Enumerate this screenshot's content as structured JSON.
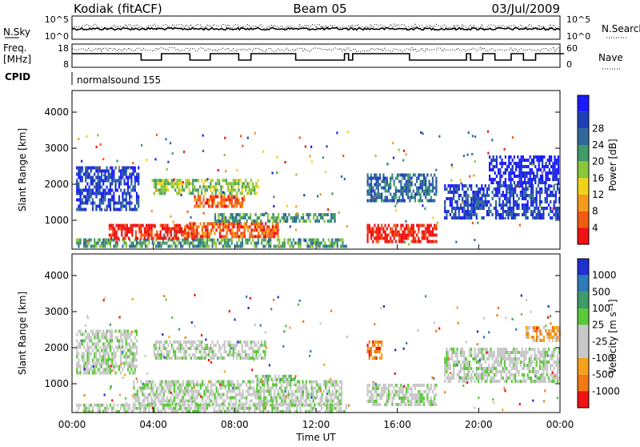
{
  "header": {
    "radar": "Kodiak (fitACF)",
    "beam": "Beam 05",
    "date": "03/Jul/2009"
  },
  "top_panels": {
    "noise": {
      "left_label": "N.Sky",
      "right_label": "N.Search",
      "left_ticks": [
        "10^5",
        "10^0"
      ],
      "right_ticks": [
        "10^5",
        "10^0"
      ]
    },
    "freq": {
      "left_label_1": "Freq.",
      "left_label_2": "[MHz]",
      "right_label": "Nave",
      "left_ticks": [
        "18",
        "8"
      ],
      "right_ticks": [
        "60",
        "0"
      ]
    },
    "cpid": {
      "label": "CPID",
      "value": "normalsound 155"
    }
  },
  "chart_data": [
    {
      "type": "heatmap",
      "name": "power",
      "xlabel": "",
      "ylabel": "Slant Range [km]",
      "x_range_hours": [
        0,
        24
      ],
      "ylim": [
        200,
        4600
      ],
      "y_ticks": [
        "1000",
        "2000",
        "3000",
        "4000"
      ],
      "colorbar": {
        "label": "Power [dB]",
        "tick_labels": [
          "4",
          "8",
          "12",
          "16",
          "20",
          "24",
          "28"
        ],
        "colors": [
          "#1a1aff",
          "#1f3fb8",
          "#2f6a9a",
          "#3f9a6a",
          "#8ac63a",
          "#f0d21a",
          "#f59a1a",
          "#f25a12",
          "#f01212"
        ]
      },
      "data_gaps_hours": [
        [
          13.6,
          14.5
        ],
        [
          18.15,
          18.3
        ]
      ],
      "regions": [
        {
          "t0": 0.2,
          "t1": 13.5,
          "r0": 200,
          "r1": 500,
          "level": 3
        },
        {
          "t0": 1.8,
          "t1": 6.0,
          "r0": 450,
          "r1": 900,
          "level": 8
        },
        {
          "t0": 5.5,
          "t1": 10.2,
          "r0": 550,
          "r1": 950,
          "level": 7
        },
        {
          "t0": 6.0,
          "t1": 8.5,
          "r0": 1350,
          "r1": 1700,
          "level": 7
        },
        {
          "t0": 4.0,
          "t1": 9.2,
          "r0": 1750,
          "r1": 2150,
          "level": 4
        },
        {
          "t0": 0.2,
          "t1": 3.3,
          "r0": 1300,
          "r1": 2500,
          "level": 1
        },
        {
          "t0": 7.0,
          "t1": 13.0,
          "r0": 900,
          "r1": 1200,
          "level": 3
        },
        {
          "t0": 14.5,
          "t1": 18.0,
          "r0": 400,
          "r1": 900,
          "level": 8
        },
        {
          "t0": 14.5,
          "t1": 18.0,
          "r0": 1500,
          "r1": 2300,
          "level": 2
        },
        {
          "t0": 18.3,
          "t1": 24.0,
          "r0": 1000,
          "r1": 2000,
          "level": 1
        },
        {
          "t0": 20.5,
          "t1": 24.0,
          "r0": 2000,
          "r1": 2800,
          "level": 0
        }
      ]
    },
    {
      "type": "heatmap",
      "name": "velocity",
      "xlabel": "Time UT",
      "ylabel": "Slant Range [km]",
      "x_range_hours": [
        0,
        24
      ],
      "x_ticks": [
        "00:00",
        "04:00",
        "08:00",
        "12:00",
        "16:00",
        "20:00",
        "00:00"
      ],
      "ylim": [
        200,
        4600
      ],
      "y_ticks": [
        "1000",
        "2000",
        "3000",
        "4000"
      ],
      "colorbar": {
        "label": "Velocity [m s⁻¹]",
        "tick_labels": [
          "1000",
          "500",
          "100",
          "25",
          "-25",
          "-100",
          "-500",
          "-1000"
        ],
        "colors": [
          "#1f2fd0",
          "#2f7ab8",
          "#3f9a6a",
          "#5cc83a",
          "#c8c8c8",
          "#c8c8c8",
          "#f5a21a",
          "#f27a12",
          "#f01212"
        ]
      },
      "data_gaps_hours": [
        [
          13.6,
          14.5
        ],
        [
          18.15,
          18.3
        ]
      ],
      "regions": [
        {
          "t0": 3.0,
          "t1": 13.3,
          "r0": 400,
          "r1": 1100,
          "level": 4
        },
        {
          "t0": 0.2,
          "t1": 13.5,
          "r0": 200,
          "r1": 450,
          "level": 4
        },
        {
          "t0": 0.2,
          "t1": 3.2,
          "r0": 1300,
          "r1": 2500,
          "level": 4
        },
        {
          "t0": 4.0,
          "t1": 9.5,
          "r0": 1700,
          "r1": 2200,
          "level": 4
        },
        {
          "t0": 9.0,
          "t1": 11.0,
          "r0": 1050,
          "r1": 1250,
          "level": 3
        },
        {
          "t0": 14.5,
          "t1": 15.3,
          "r0": 1700,
          "r1": 2200,
          "level": 7
        },
        {
          "t0": 14.5,
          "t1": 18.0,
          "r0": 400,
          "r1": 1000,
          "level": 4
        },
        {
          "t0": 18.3,
          "t1": 24.0,
          "r0": 1000,
          "r1": 2000,
          "level": 4
        },
        {
          "t0": 22.3,
          "t1": 24.0,
          "r0": 2200,
          "r1": 2600,
          "level": 6
        }
      ]
    }
  ]
}
